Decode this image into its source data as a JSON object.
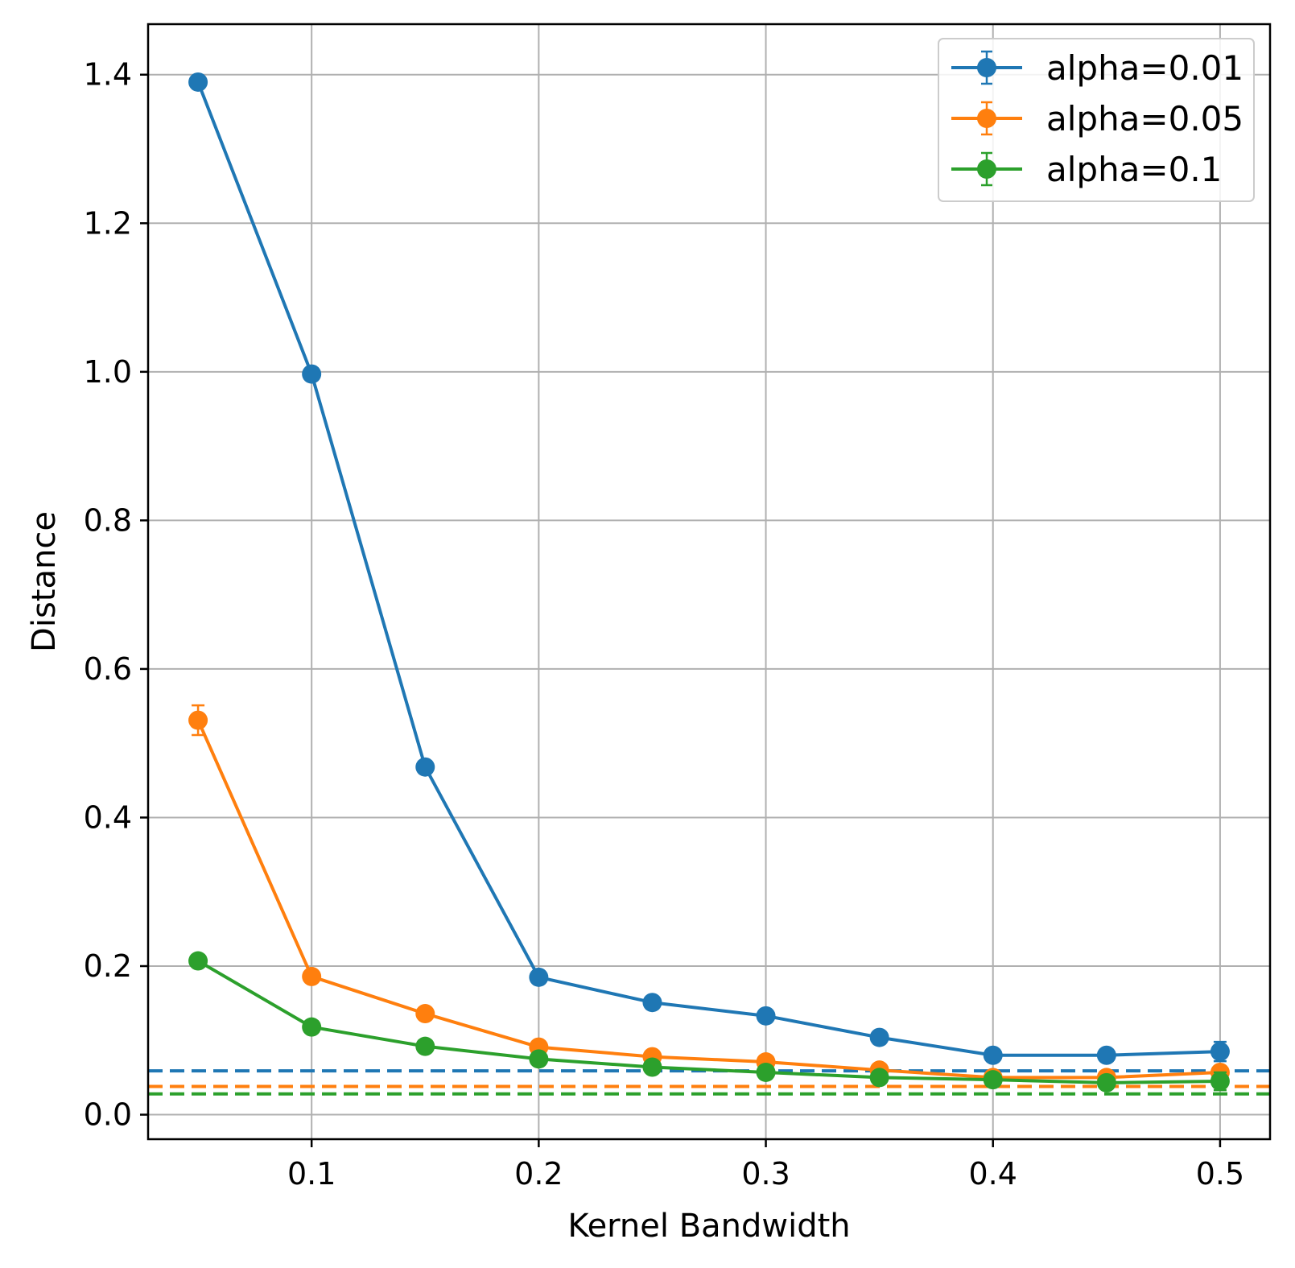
{
  "chart_data": {
    "type": "line",
    "title": "",
    "xlabel": "Kernel Bandwidth",
    "ylabel": "Distance",
    "xlim": [
      0.028,
      0.522
    ],
    "ylim": [
      -0.033,
      1.468
    ],
    "xticks": [
      0.1,
      0.2,
      0.3,
      0.4,
      0.5
    ],
    "xtick_labels": [
      "0.1",
      "0.2",
      "0.3",
      "0.4",
      "0.5"
    ],
    "yticks": [
      0.0,
      0.2,
      0.4,
      0.6,
      0.8,
      1.0,
      1.2,
      1.4
    ],
    "ytick_labels": [
      "0.0",
      "0.2",
      "0.4",
      "0.6",
      "0.8",
      "1.0",
      "1.2",
      "1.4"
    ],
    "grid": true,
    "legend_position": "top-right",
    "x": [
      0.05,
      0.1,
      0.15,
      0.2,
      0.25,
      0.3,
      0.35,
      0.4,
      0.45,
      0.5
    ],
    "series": [
      {
        "name": "alpha=0.01",
        "color": "#1f77b4",
        "values": [
          1.39,
          0.997,
          0.468,
          0.185,
          0.151,
          0.133,
          0.104,
          0.08,
          0.08,
          0.085
        ],
        "errors": [
          0.005,
          0.005,
          0.005,
          0.005,
          0.005,
          0.005,
          0.005,
          0.005,
          0.005,
          0.013
        ],
        "baseline": 0.059
      },
      {
        "name": "alpha=0.05",
        "color": "#ff7f0e",
        "values": [
          0.531,
          0.186,
          0.136,
          0.091,
          0.078,
          0.071,
          0.06,
          0.05,
          0.05,
          0.057
        ],
        "errors": [
          0.02,
          0.005,
          0.005,
          0.005,
          0.005,
          0.005,
          0.005,
          0.005,
          0.005,
          0.005
        ],
        "baseline": 0.038
      },
      {
        "name": "alpha=0.1",
        "color": "#2ca02c",
        "values": [
          0.207,
          0.118,
          0.092,
          0.075,
          0.064,
          0.057,
          0.05,
          0.047,
          0.043,
          0.045
        ],
        "errors": [
          0.005,
          0.005,
          0.005,
          0.005,
          0.005,
          0.005,
          0.005,
          0.005,
          0.005,
          0.012
        ],
        "baseline": 0.028
      }
    ]
  }
}
